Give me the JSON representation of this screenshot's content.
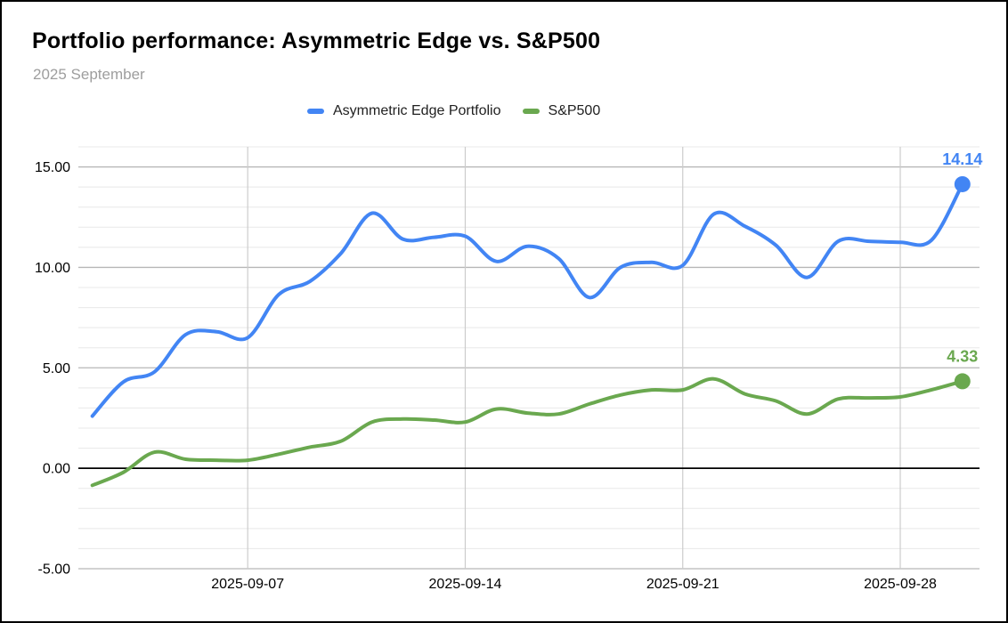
{
  "chart_data": {
    "type": "line",
    "title": "Portfolio performance: Asymmetric Edge vs. S&P500",
    "subtitle": "2025 September",
    "legend_position": "top",
    "grid": true,
    "smooth_lines": true,
    "x": [
      "2025-09-02",
      "2025-09-03",
      "2025-09-04",
      "2025-09-05",
      "2025-09-06",
      "2025-09-07",
      "2025-09-08",
      "2025-09-09",
      "2025-09-10",
      "2025-09-11",
      "2025-09-12",
      "2025-09-13",
      "2025-09-14",
      "2025-09-15",
      "2025-09-16",
      "2025-09-17",
      "2025-09-18",
      "2025-09-19",
      "2025-09-20",
      "2025-09-21",
      "2025-09-22",
      "2025-09-23",
      "2025-09-24",
      "2025-09-25",
      "2025-09-26",
      "2025-09-27",
      "2025-09-28",
      "2025-09-29",
      "2025-09-30"
    ],
    "x_tick_labels": [
      "2025-09-07",
      "2025-09-14",
      "2025-09-21",
      "2025-09-28"
    ],
    "y_ticks": [
      {
        "value": 15,
        "label": "15.00"
      },
      {
        "value": 10,
        "label": "10.00"
      },
      {
        "value": 5,
        "label": "5.00"
      },
      {
        "value": 0,
        "label": "0.00"
      },
      {
        "value": -5,
        "label": "-5.00"
      }
    ],
    "ylim": [
      -5,
      16
    ],
    "x_domain_days": [
      1.55,
      30.55
    ],
    "minor_grid_step": 1,
    "series": [
      {
        "name": "Asymmetric Edge Portfolio",
        "color": "#4285f4",
        "end_label": "14.14",
        "values": [
          2.6,
          4.3,
          4.8,
          6.65,
          6.8,
          6.5,
          8.65,
          9.3,
          10.7,
          12.7,
          11.4,
          11.5,
          11.55,
          10.3,
          11.05,
          10.45,
          8.5,
          10.0,
          10.25,
          10.1,
          12.65,
          12.05,
          11.1,
          9.5,
          11.3,
          11.3,
          11.25,
          11.35,
          14.14
        ]
      },
      {
        "name": "S&P500",
        "color": "#6aa84f",
        "end_label": "4.33",
        "values": [
          -0.85,
          -0.2,
          0.8,
          0.45,
          0.4,
          0.4,
          0.7,
          1.05,
          1.35,
          2.3,
          2.45,
          2.4,
          2.3,
          2.95,
          2.75,
          2.7,
          3.2,
          3.65,
          3.9,
          3.9,
          4.45,
          3.7,
          3.35,
          2.7,
          3.45,
          3.5,
          3.55,
          3.9,
          4.33
        ]
      }
    ]
  }
}
